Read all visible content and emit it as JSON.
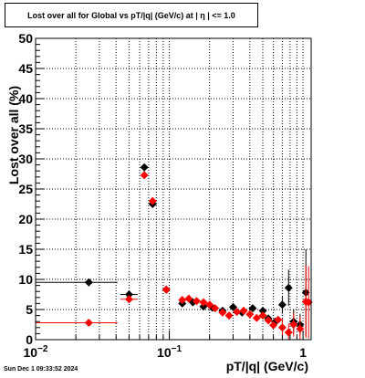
{
  "chart_data": {
    "type": "scatter",
    "title": "Lost over all for Global vs pT/|q| (GeV/c) at |  η  | <= 1.0",
    "xlabel": "pT/|q| (GeV/c)",
    "ylabel": "Lost over all (%)",
    "x_scale": "log",
    "xlim": [
      0.01,
      1.15
    ],
    "ylim": [
      0,
      50
    ],
    "y_ticks": [
      "0",
      "5",
      "10",
      "15",
      "20",
      "25",
      "30",
      "35",
      "40",
      "45",
      "50"
    ],
    "x_tick_labels": [
      {
        "value": 0.01,
        "base": "10",
        "exp": "−2"
      },
      {
        "value": 0.1,
        "base": "10",
        "exp": "−1"
      },
      {
        "value": 1,
        "base": "1",
        "exp": ""
      }
    ],
    "grid": true,
    "series": [
      {
        "color": "#000000",
        "points": [
          {
            "x": 0.025,
            "y": 9.5,
            "xerr": [
              0.01,
              0.041
            ],
            "yerr": 0
          },
          {
            "x": 0.05,
            "y": 7.5,
            "xerr": [
              0.043,
              0.058
            ],
            "yerr": 0
          },
          {
            "x": 0.065,
            "y": 28.6
          },
          {
            "x": 0.075,
            "y": 22.5
          },
          {
            "x": 0.095,
            "y": 8.3
          },
          {
            "x": 0.125,
            "y": 6.0
          },
          {
            "x": 0.15,
            "y": 6.2
          },
          {
            "x": 0.18,
            "y": 5.5
          },
          {
            "x": 0.21,
            "y": 5.3
          },
          {
            "x": 0.25,
            "y": 4.8
          },
          {
            "x": 0.3,
            "y": 5.4
          },
          {
            "x": 0.35,
            "y": 4.5
          },
          {
            "x": 0.42,
            "y": 5.2
          },
          {
            "x": 0.5,
            "y": 4.8
          },
          {
            "x": 0.55,
            "y": 3.5
          },
          {
            "x": 0.62,
            "y": 3.0
          },
          {
            "x": 0.7,
            "y": 5.8,
            "yerr": 1.5
          },
          {
            "x": 0.78,
            "y": 8.6,
            "yerr": 3.0
          },
          {
            "x": 0.85,
            "y": 3.0,
            "yerr": 2.0
          },
          {
            "x": 0.95,
            "y": 2.5,
            "yerr": 1.8
          },
          {
            "x": 1.05,
            "y": 7.8,
            "yerr": 7.2
          }
        ]
      },
      {
        "color": "#ff0000",
        "points": [
          {
            "x": 0.025,
            "y": 2.8,
            "xerr": [
              0.01,
              0.041
            ],
            "yerr": 0
          },
          {
            "x": 0.05,
            "y": 6.7,
            "xerr": [
              0.043,
              0.058
            ],
            "yerr": 0
          },
          {
            "x": 0.065,
            "y": 27.3
          },
          {
            "x": 0.075,
            "y": 23.0
          },
          {
            "x": 0.095,
            "y": 8.3
          },
          {
            "x": 0.125,
            "y": 6.6
          },
          {
            "x": 0.14,
            "y": 6.8
          },
          {
            "x": 0.16,
            "y": 6.4
          },
          {
            "x": 0.18,
            "y": 6.2
          },
          {
            "x": 0.2,
            "y": 5.8
          },
          {
            "x": 0.22,
            "y": 5.2
          },
          {
            "x": 0.25,
            "y": 4.5
          },
          {
            "x": 0.28,
            "y": 4.0
          },
          {
            "x": 0.32,
            "y": 4.6
          },
          {
            "x": 0.36,
            "y": 4.8
          },
          {
            "x": 0.4,
            "y": 4.2
          },
          {
            "x": 0.45,
            "y": 3.6
          },
          {
            "x": 0.5,
            "y": 4.0
          },
          {
            "x": 0.55,
            "y": 3.2
          },
          {
            "x": 0.6,
            "y": 2.4
          },
          {
            "x": 0.65,
            "y": 3.3
          },
          {
            "x": 0.7,
            "y": 2.0,
            "yerr": 1.5
          },
          {
            "x": 0.78,
            "y": 1.2,
            "yerr": 1.5
          },
          {
            "x": 0.85,
            "y": 2.5,
            "yerr": 2.0
          },
          {
            "x": 0.95,
            "y": 1.8,
            "yerr": 2.0
          },
          {
            "x": 1.05,
            "y": 6.3,
            "yerr": 6.0
          },
          {
            "x": 1.1,
            "y": 6.2,
            "yerr": 6.0
          }
        ]
      }
    ]
  },
  "footer": {
    "date": "Sun Dec  1 09:33:52 2024"
  }
}
